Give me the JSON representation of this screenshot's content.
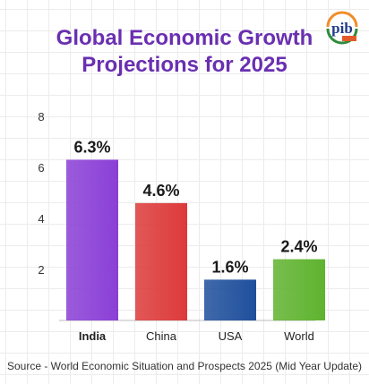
{
  "title": {
    "line1": "Global Economic Growth",
    "line2": "Projections for 2025"
  },
  "source": "Source - World Economic Situation and Prospects 2025 (Mid Year Update)",
  "logo": {
    "icon": "pib-logo-icon",
    "text": "pib",
    "badge": ""
  },
  "chart_data": {
    "type": "bar",
    "categories": [
      "India",
      "China",
      "USA",
      "World"
    ],
    "values": [
      6.3,
      4.6,
      1.6,
      2.4
    ],
    "value_labels": [
      "6.3%",
      "4.6%",
      "1.6%",
      "2.4%"
    ],
    "colors": [
      "#8a3fd6",
      "#dd3a3a",
      "#1f4f9c",
      "#5fb32f"
    ],
    "highlight_category": "India",
    "y_ticks": [
      2,
      4,
      6,
      8
    ],
    "ylim": [
      0,
      8
    ],
    "title": "Global Economic Growth Projections for 2025",
    "xlabel": "",
    "ylabel": "",
    "grid": true
  }
}
